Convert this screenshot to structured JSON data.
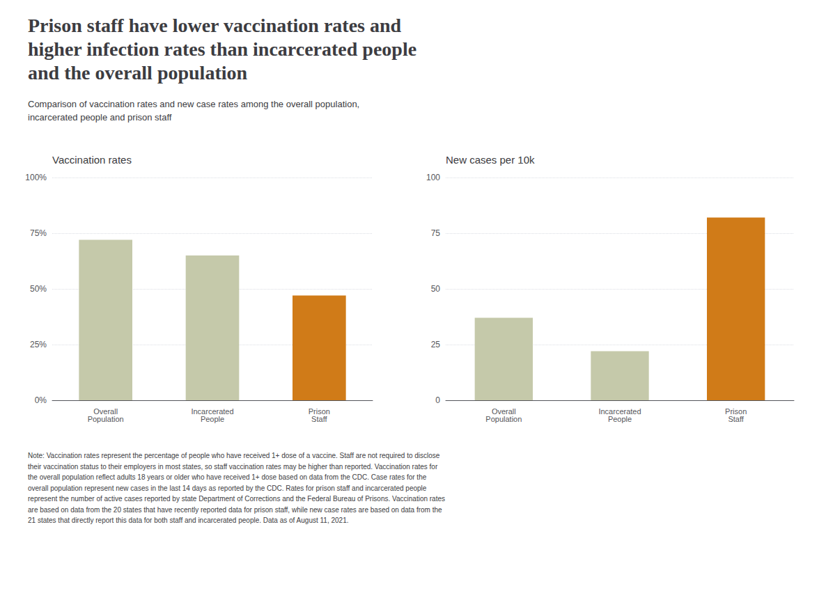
{
  "title": "Prison staff have lower vaccination rates and\nhigher infection rates than incarcerated people\nand the overall population",
  "subtitle": "Comparison of vaccination rates and new case rates among the overall population,\nincarcerated people and prison staff",
  "note": "Note: Vaccination rates represent the percentage of people who have received 1+ dose of a vaccine. Staff are not required to disclose\ntheir vaccination status to their employers in most states, so staff vaccination rates may be higher than reported. Vaccination rates for\nthe overall population reflect adults 18 years or older who have received 1+ dose based on data from the CDC. Case rates for the\noverall population represent new cases in the last 14 days as reported by the CDC. Rates for prison staff and incarcerated people\nrepresent the number of active cases reported by state Department of Corrections and the Federal Bureau of Prisons. Vaccination rates\nare based on data from the 20 states that have recently reported data for prison staff, while new case rates are based on data from the\n21 states that directly report this data for both staff and incarcerated people. Data as of August 11, 2021.",
  "chart_data": [
    {
      "type": "bar",
      "title": "Vaccination rates",
      "categories": [
        "Overall\nPopulation",
        "Incarcerated\nPeople",
        "Prison\nStaff"
      ],
      "values": [
        0.72,
        0.65,
        0.47
      ],
      "colors": [
        "#c5c9aa",
        "#c5c9aa",
        "#d07b18"
      ],
      "ylim": [
        0,
        1.0
      ],
      "yticks": [
        {
          "value": 0.0,
          "label": "0%"
        },
        {
          "value": 0.25,
          "label": "25%"
        },
        {
          "value": 0.5,
          "label": "50%"
        },
        {
          "value": 0.75,
          "label": "75%"
        },
        {
          "value": 1.0,
          "label": "100%"
        }
      ],
      "grid": true
    },
    {
      "type": "bar",
      "title": "New cases per 10k",
      "categories": [
        "Overall\nPopulation",
        "Incarcerated\nPeople",
        "Prison\nStaff"
      ],
      "values": [
        37,
        22,
        82
      ],
      "colors": [
        "#c5c9aa",
        "#c5c9aa",
        "#d07b18"
      ],
      "ylim": [
        0,
        100
      ],
      "yticks": [
        0,
        25,
        50,
        75,
        100
      ],
      "grid": true
    }
  ]
}
